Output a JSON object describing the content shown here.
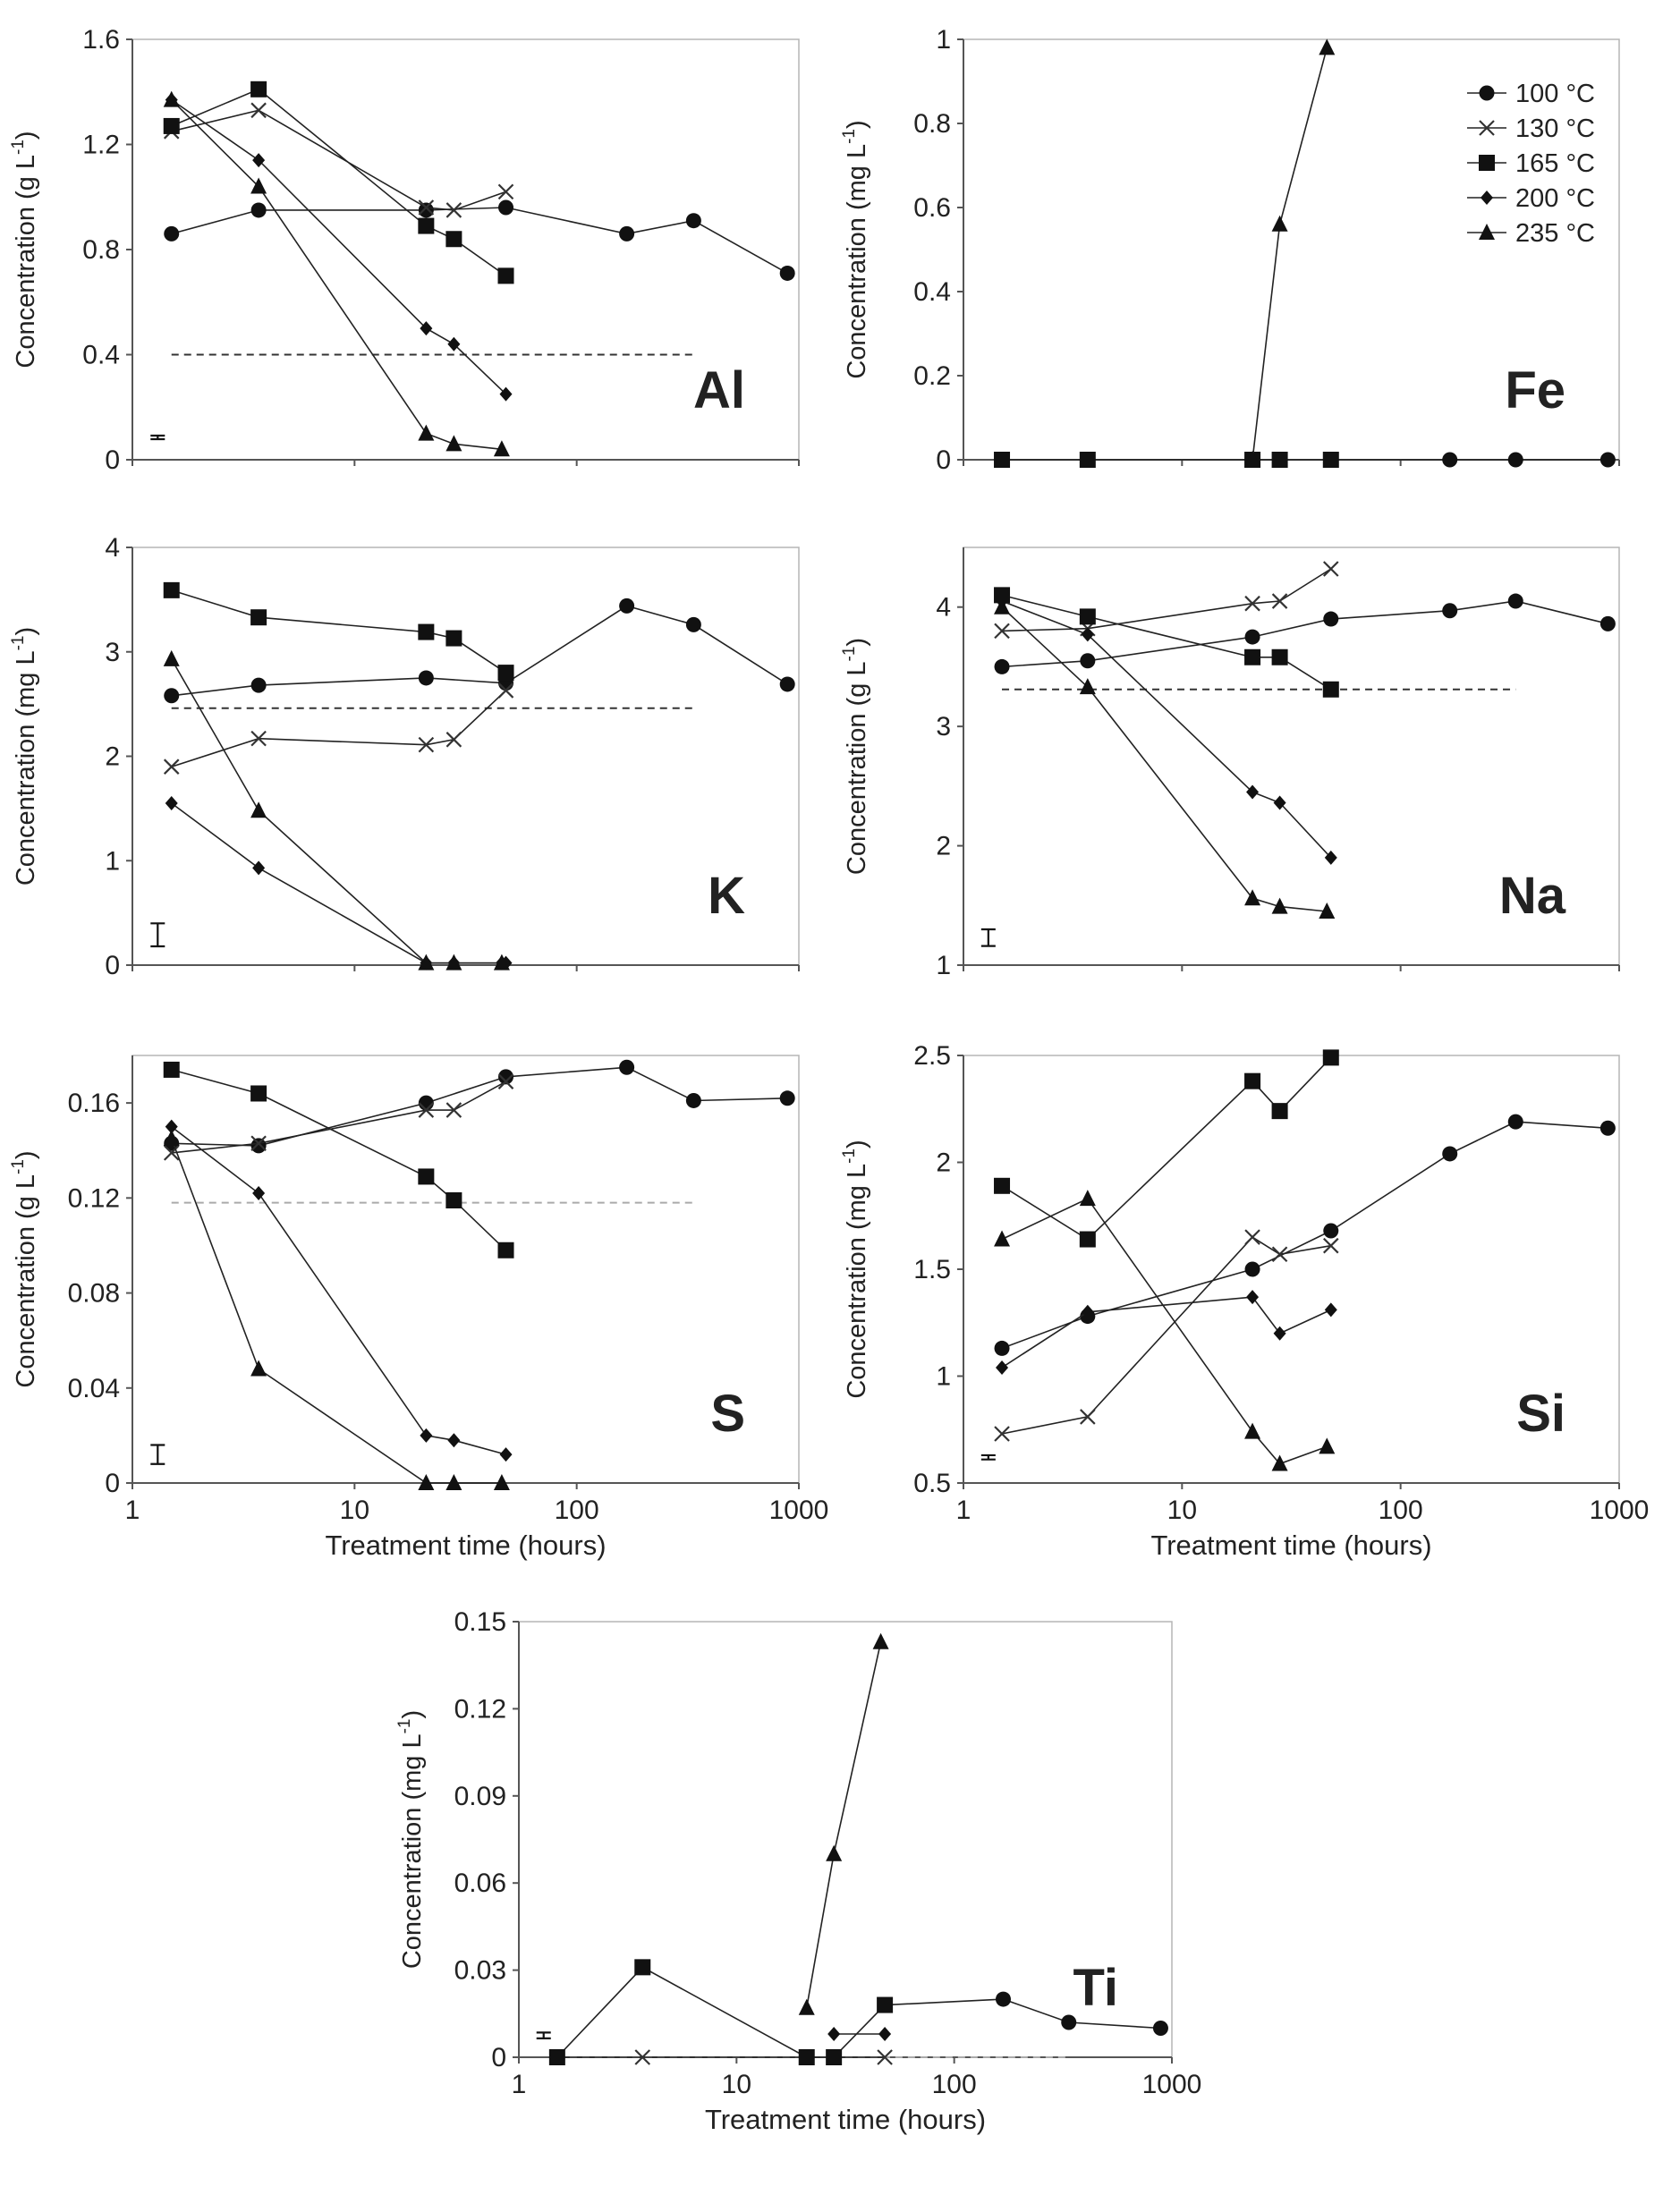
{
  "figure": {
    "x_axis_title": "Treatment time (hours)"
  },
  "legend": [
    {
      "label": "100 °C",
      "marker": "circle"
    },
    {
      "label": "130 °C",
      "marker": "x"
    },
    {
      "label": "165 °C",
      "marker": "square"
    },
    {
      "label": "200 °C",
      "marker": "diamond"
    },
    {
      "label": "235 °C",
      "marker": "triangle"
    }
  ],
  "chart_data": [
    {
      "type": "line",
      "element": "Al",
      "ylabel": "Concentration (g L-1)",
      "xlabel": "",
      "xscale": "log",
      "xlim": [
        1,
        1000
      ],
      "ylim": [
        0,
        1.6
      ],
      "yticks": [
        0,
        0.4,
        0.8,
        1.2,
        1.6
      ],
      "ytick_labels": [
        "0",
        "0.4",
        "0.8",
        "1.2",
        "1.6"
      ],
      "xticks": [
        1,
        10,
        100,
        1000
      ],
      "xtick_labels": [],
      "reference_line": {
        "value": 0.4,
        "x_range": [
          1.5,
          336
        ],
        "style": "dashed"
      },
      "error_bar": {
        "x": 1.3,
        "center": 0.085,
        "half": 0.003
      },
      "series": [
        {
          "name": "100 °C",
          "x": [
            1.5,
            3.7,
            21,
            48,
            168,
            336,
            888
          ],
          "y": [
            0.86,
            0.95,
            0.95,
            0.96,
            0.86,
            0.91,
            0.71
          ]
        },
        {
          "name": "130 °C",
          "x": [
            1.5,
            3.7,
            21,
            28,
            48
          ],
          "y": [
            1.25,
            1.33,
            0.96,
            0.95,
            1.02
          ]
        },
        {
          "name": "165 °C",
          "x": [
            1.5,
            3.7,
            21,
            28,
            48
          ],
          "y": [
            1.27,
            1.41,
            0.89,
            0.84,
            0.7
          ]
        },
        {
          "name": "200 °C",
          "x": [
            1.5,
            3.7,
            21,
            28,
            48
          ],
          "y": [
            1.37,
            1.14,
            0.5,
            0.44,
            0.25
          ]
        },
        {
          "name": "235 °C",
          "x": [
            1.5,
            3.7,
            21,
            28,
            46
          ],
          "y": [
            1.37,
            1.04,
            0.1,
            0.06,
            0.04
          ]
        }
      ]
    },
    {
      "type": "line",
      "element": "Fe",
      "ylabel": "Concentration (mg L-1)",
      "xlabel": "",
      "xscale": "log",
      "xlim": [
        1,
        1000
      ],
      "ylim": [
        0,
        1
      ],
      "yticks": [
        0,
        0.2,
        0.4,
        0.6,
        0.8,
        1
      ],
      "ytick_labels": [
        "0",
        "0.2",
        "0.4",
        "0.6",
        "0.8",
        "1"
      ],
      "xticks": [
        1,
        10,
        100,
        1000
      ],
      "xtick_labels": [],
      "series": [
        {
          "name": "100 °C",
          "x": [
            48,
            168,
            336,
            888
          ],
          "y": [
            0,
            0,
            0,
            0
          ]
        },
        {
          "name": "165 °C",
          "x": [
            1.5,
            3.7,
            21,
            28,
            48
          ],
          "y": [
            0,
            0,
            0,
            0,
            0
          ]
        },
        {
          "name": "235 °C",
          "x": [
            21,
            28,
            46
          ],
          "y": [
            0,
            0.56,
            0.98
          ]
        }
      ]
    },
    {
      "type": "line",
      "element": "K",
      "ylabel": "Concentration (mg L-1)",
      "xlabel": "",
      "xscale": "log",
      "xlim": [
        1,
        1000
      ],
      "ylim": [
        0,
        4
      ],
      "yticks": [
        0,
        1,
        2,
        3,
        4
      ],
      "ytick_labels": [
        "0",
        "1",
        "2",
        "3",
        "4"
      ],
      "xticks": [
        1,
        10,
        100,
        1000
      ],
      "xtick_labels": [],
      "reference_line": {
        "value": 2.46,
        "x_range": [
          1.5,
          336
        ],
        "style": "dashed"
      },
      "error_bar": {
        "x": 1.3,
        "center": 0.29,
        "half": 0.11
      },
      "series": [
        {
          "name": "100 °C",
          "x": [
            1.5,
            3.7,
            21,
            48,
            168,
            336,
            888
          ],
          "y": [
            2.58,
            2.68,
            2.75,
            2.7,
            3.44,
            3.26,
            2.69
          ]
        },
        {
          "name": "130 °C",
          "x": [
            1.5,
            3.7,
            21,
            28,
            48
          ],
          "y": [
            1.9,
            2.17,
            2.11,
            2.16,
            2.63
          ]
        },
        {
          "name": "165 °C",
          "x": [
            1.5,
            3.7,
            21,
            28,
            48
          ],
          "y": [
            3.59,
            3.33,
            3.19,
            3.13,
            2.8
          ]
        },
        {
          "name": "200 °C",
          "x": [
            1.5,
            3.7,
            21,
            28,
            46,
            48
          ],
          "y": [
            1.55,
            0.93,
            0.02,
            0.02,
            0.02,
            0.02
          ]
        },
        {
          "name": "235 °C",
          "x": [
            1.5,
            3.7,
            21,
            28,
            46
          ],
          "y": [
            2.93,
            1.48,
            0.02,
            0.02,
            0.02
          ]
        }
      ]
    },
    {
      "type": "line",
      "element": "Na",
      "ylabel": "Concentration (g L-1)",
      "xlabel": "",
      "xscale": "log",
      "xlim": [
        1,
        1000
      ],
      "ylim": [
        1,
        4.5
      ],
      "yticks": [
        1,
        2,
        3,
        4
      ],
      "ytick_labels": [
        "1",
        "2",
        "3",
        "4"
      ],
      "xticks": [
        1,
        10,
        100,
        1000
      ],
      "xtick_labels": [],
      "reference_line": {
        "value": 3.31,
        "x_range": [
          1.5,
          336
        ],
        "style": "dashed"
      },
      "error_bar": {
        "x": 1.3,
        "center": 1.23,
        "half": 0.07
      },
      "series": [
        {
          "name": "100 °C",
          "x": [
            1.5,
            3.7,
            21,
            48,
            168,
            336,
            888
          ],
          "y": [
            3.5,
            3.55,
            3.75,
            3.9,
            3.97,
            4.05,
            3.86
          ]
        },
        {
          "name": "130 °C",
          "x": [
            1.5,
            3.7,
            21,
            28,
            48
          ],
          "y": [
            3.8,
            3.82,
            4.03,
            4.05,
            4.32
          ]
        },
        {
          "name": "165 °C",
          "x": [
            1.5,
            3.7,
            21,
            28,
            48
          ],
          "y": [
            4.1,
            3.92,
            3.58,
            3.58,
            3.31
          ]
        },
        {
          "name": "200 °C",
          "x": [
            1.5,
            3.7,
            21,
            28,
            48
          ],
          "y": [
            4.05,
            3.77,
            2.45,
            2.36,
            1.9
          ]
        },
        {
          "name": "235 °C",
          "x": [
            1.5,
            3.7,
            21,
            28,
            46
          ],
          "y": [
            4.0,
            3.33,
            1.56,
            1.49,
            1.45
          ]
        }
      ]
    },
    {
      "type": "line",
      "element": "S",
      "ylabel": "Concentration (g L-1)",
      "xlabel": "Treatment time (hours)",
      "xscale": "log",
      "xlim": [
        1,
        1000
      ],
      "ylim": [
        0,
        0.18
      ],
      "yticks": [
        0,
        0.04,
        0.08,
        0.12,
        0.16
      ],
      "ytick_labels": [
        "0",
        "0.04",
        "0.08",
        "0.12",
        "0.16"
      ],
      "xticks": [
        1,
        10,
        100,
        1000
      ],
      "xtick_labels": [
        "1",
        "10",
        "100",
        "1000"
      ],
      "reference_line": {
        "value": 0.118,
        "x_range": [
          1.5,
          336
        ],
        "style": "dashed-light"
      },
      "error_bar": {
        "x": 1.3,
        "center": 0.012,
        "half": 0.004
      },
      "series": [
        {
          "name": "100 °C",
          "x": [
            1.5,
            3.7,
            21,
            48,
            168,
            336,
            888
          ],
          "y": [
            0.143,
            0.142,
            0.16,
            0.171,
            0.175,
            0.161,
            0.162
          ]
        },
        {
          "name": "130 °C",
          "x": [
            1.5,
            3.7,
            21,
            28,
            48
          ],
          "y": [
            0.139,
            0.143,
            0.157,
            0.157,
            0.169
          ]
        },
        {
          "name": "165 °C",
          "x": [
            1.5,
            3.7,
            21,
            28,
            48
          ],
          "y": [
            0.174,
            0.164,
            0.129,
            0.119,
            0.098
          ]
        },
        {
          "name": "200 °C",
          "x": [
            1.5,
            3.7,
            21,
            28,
            48
          ],
          "y": [
            0.15,
            0.122,
            0.02,
            0.018,
            0.012
          ]
        },
        {
          "name": "235 °C",
          "x": [
            1.5,
            3.7,
            21,
            28,
            46
          ],
          "y": [
            0.145,
            0.048,
            0.0,
            0.0,
            0.0
          ]
        }
      ]
    },
    {
      "type": "line",
      "element": "Si",
      "ylabel": "Concentration (mg L-1)",
      "xlabel": "Treatment time (hours)",
      "xscale": "log",
      "xlim": [
        1,
        1000
      ],
      "ylim": [
        0.5,
        2.5
      ],
      "yticks": [
        0.5,
        1,
        1.5,
        2,
        2.5
      ],
      "ytick_labels": [
        "0.5",
        "1",
        "1.5",
        "2",
        "2.5"
      ],
      "xticks": [
        1,
        10,
        100,
        1000
      ],
      "xtick_labels": [
        "1",
        "10",
        "100",
        "1000"
      ],
      "error_bar": {
        "x": 1.3,
        "center": 0.62,
        "half": 0.01
      },
      "series": [
        {
          "name": "100 °C",
          "x": [
            1.5,
            3.7,
            21,
            48,
            168,
            336,
            888
          ],
          "y": [
            1.13,
            1.28,
            1.5,
            1.68,
            2.04,
            2.19,
            2.16
          ]
        },
        {
          "name": "130 °C",
          "x": [
            1.5,
            3.7,
            21,
            28,
            48
          ],
          "y": [
            0.73,
            0.81,
            1.65,
            1.57,
            1.61
          ]
        },
        {
          "name": "165 °C",
          "x": [
            1.5,
            3.7,
            21,
            28,
            48
          ],
          "y": [
            1.89,
            1.64,
            2.38,
            2.24,
            2.49
          ]
        },
        {
          "name": "200 °C",
          "x": [
            1.5,
            3.7,
            21,
            28,
            48
          ],
          "y": [
            1.04,
            1.3,
            1.37,
            1.2,
            1.31
          ]
        },
        {
          "name": "235 °C",
          "x": [
            1.5,
            3.7,
            21,
            28,
            46
          ],
          "y": [
            1.64,
            1.83,
            0.74,
            0.59,
            0.67
          ]
        }
      ]
    },
    {
      "type": "line",
      "element": "Ti",
      "ylabel": "Concentration (mg L-1)",
      "xlabel": "Treatment time (hours)",
      "xscale": "log",
      "xlim": [
        1,
        1000
      ],
      "ylim": [
        0,
        0.15
      ],
      "yticks": [
        0,
        0.03,
        0.06,
        0.09,
        0.12,
        0.15
      ],
      "ytick_labels": [
        "0",
        "0.03",
        "0.06",
        "0.09",
        "0.12",
        "0.15"
      ],
      "xticks": [
        1,
        10,
        100,
        1000
      ],
      "xtick_labels": [
        "1",
        "10",
        "100",
        "1000"
      ],
      "reference_line": {
        "value": 0.0,
        "x_range": [
          1.5,
          336
        ],
        "style": "dashed-light"
      },
      "error_bar": {
        "x": 1.3,
        "center": 0.0075,
        "half": 0.001
      },
      "series": [
        {
          "name": "100 °C",
          "x": [
            48,
            168,
            336,
            888
          ],
          "y": [
            0.018,
            0.02,
            0.012,
            0.01
          ]
        },
        {
          "name": "130 °C",
          "x": [
            1.5,
            3.7,
            21,
            28,
            48
          ],
          "y": [
            0,
            0,
            0,
            0,
            0
          ]
        },
        {
          "name": "165 °C",
          "x": [
            1.5,
            3.7,
            21,
            28,
            48
          ],
          "y": [
            0,
            0.031,
            0,
            0,
            0.018
          ]
        },
        {
          "name": "200 °C",
          "x": [
            28,
            48
          ],
          "y": [
            0.008,
            0.008
          ]
        },
        {
          "name": "235 °C",
          "x": [
            21,
            28,
            46
          ],
          "y": [
            0.017,
            0.07,
            0.143
          ]
        }
      ]
    }
  ]
}
